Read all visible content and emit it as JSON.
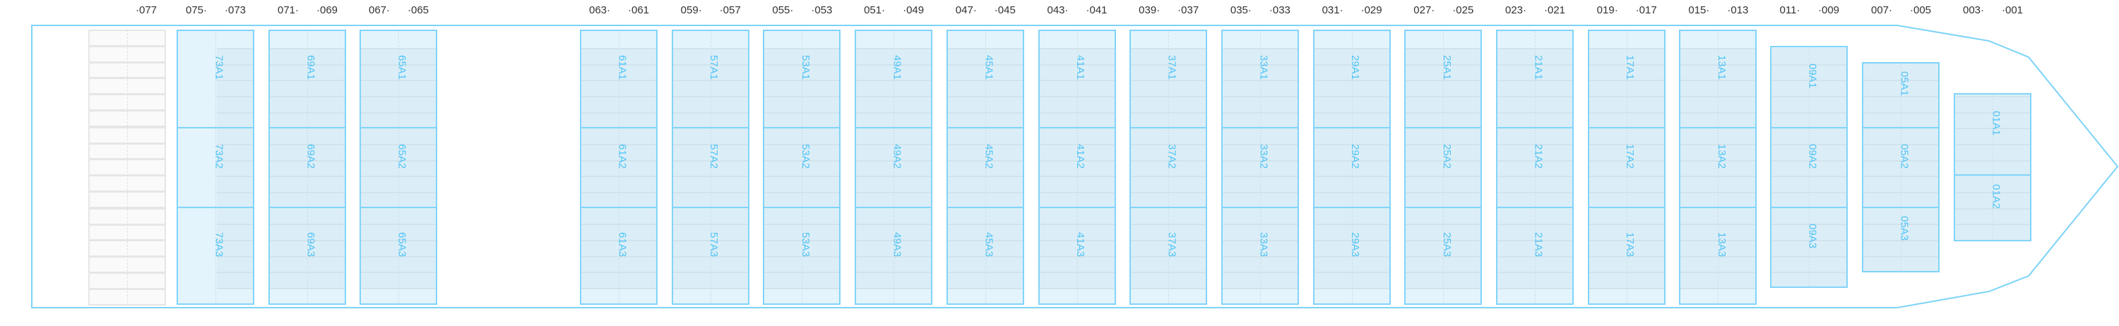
{
  "colors": {
    "hull": "#7dd3f7",
    "hold_border": "#81d4fa",
    "hold_fill": "#e3f4fc",
    "hold_text": "#4fc3f7",
    "empty_bay": "#fafafa"
  },
  "empty_bay": {
    "label": "·077"
  },
  "bays": [
    {
      "id": "73",
      "left_label": "075·",
      "right_label": "·073",
      "holds": [
        "73A1",
        "73A2",
        "73A3"
      ]
    },
    {
      "id": "69",
      "left_label": "071·",
      "right_label": "·069",
      "holds": [
        "69A1",
        "69A2",
        "69A3"
      ]
    },
    {
      "id": "65",
      "left_label": "067·",
      "right_label": "·065",
      "holds": [
        "65A1",
        "65A2",
        "65A3"
      ]
    },
    {
      "id": "61",
      "left_label": "063·",
      "right_label": "·061",
      "holds": [
        "61A1",
        "61A2",
        "61A3"
      ]
    },
    {
      "id": "57",
      "left_label": "059·",
      "right_label": "·057",
      "holds": [
        "57A1",
        "57A2",
        "57A3"
      ]
    },
    {
      "id": "53",
      "left_label": "055·",
      "right_label": "·053",
      "holds": [
        "53A1",
        "53A2",
        "53A3"
      ]
    },
    {
      "id": "49",
      "left_label": "051·",
      "right_label": "·049",
      "holds": [
        "49A1",
        "49A2",
        "49A3"
      ]
    },
    {
      "id": "45",
      "left_label": "047·",
      "right_label": "·045",
      "holds": [
        "45A1",
        "45A2",
        "45A3"
      ]
    },
    {
      "id": "41",
      "left_label": "043·",
      "right_label": "·041",
      "holds": [
        "41A1",
        "41A2",
        "41A3"
      ]
    },
    {
      "id": "37",
      "left_label": "039·",
      "right_label": "·037",
      "holds": [
        "37A1",
        "37A2",
        "37A3"
      ]
    },
    {
      "id": "33",
      "left_label": "035·",
      "right_label": "·033",
      "holds": [
        "33A1",
        "33A2",
        "33A3"
      ]
    },
    {
      "id": "29",
      "left_label": "031·",
      "right_label": "·029",
      "holds": [
        "29A1",
        "29A2",
        "29A3"
      ]
    },
    {
      "id": "25",
      "left_label": "027·",
      "right_label": "·025",
      "holds": [
        "25A1",
        "25A2",
        "25A3"
      ]
    },
    {
      "id": "21",
      "left_label": "023·",
      "right_label": "·021",
      "holds": [
        "21A1",
        "21A2",
        "21A3"
      ]
    },
    {
      "id": "17",
      "left_label": "019·",
      "right_label": "·017",
      "holds": [
        "17A1",
        "17A2",
        "17A3"
      ]
    },
    {
      "id": "13",
      "left_label": "015·",
      "right_label": "·013",
      "holds": [
        "13A1",
        "13A2",
        "13A3"
      ]
    },
    {
      "id": "09",
      "left_label": "011·",
      "right_label": "·009",
      "holds": [
        "09A1",
        "09A2",
        "09A3"
      ]
    },
    {
      "id": "05",
      "left_label": "007·",
      "right_label": "·005",
      "holds": [
        "05A1",
        "05A2",
        "05A3"
      ]
    },
    {
      "id": "01",
      "left_label": "003·",
      "right_label": "·001",
      "holds": [
        "01A1",
        "01A2"
      ]
    }
  ]
}
